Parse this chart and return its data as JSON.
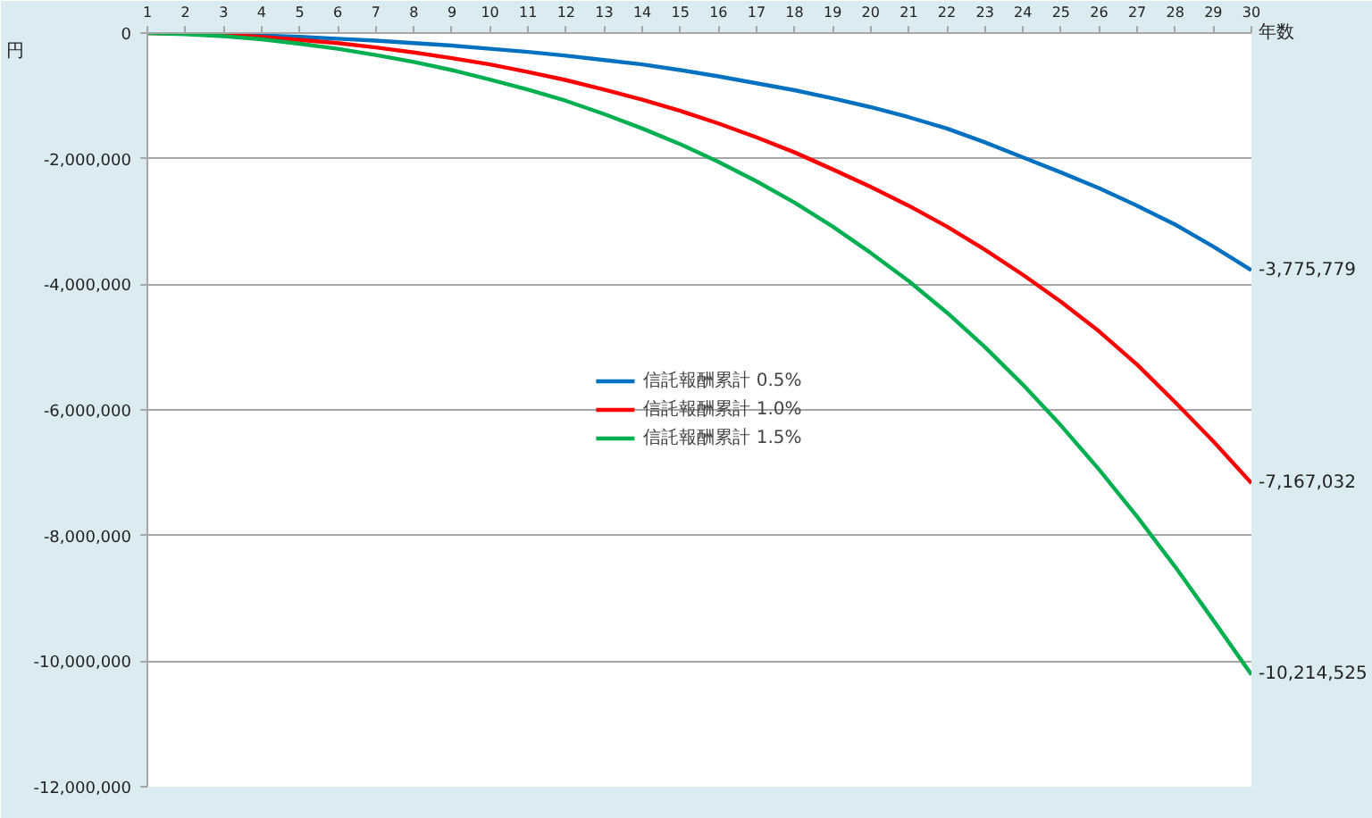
{
  "chart_data": {
    "type": "line",
    "xlabel": "年数",
    "ylabel": "円",
    "x": [
      1,
      2,
      3,
      4,
      5,
      6,
      7,
      8,
      9,
      10,
      11,
      12,
      13,
      14,
      15,
      16,
      17,
      18,
      19,
      20,
      21,
      22,
      23,
      24,
      25,
      26,
      27,
      28,
      29,
      30
    ],
    "series": [
      {
        "name": "信託報酬累計 0.5%",
        "color": "#0070c0",
        "values": [
          null,
          null,
          -20000,
          -40000,
          -60000,
          -90000,
          -120000,
          -160000,
          -200000,
          -250000,
          -300000,
          -360000,
          -430000,
          -500000,
          -590000,
          -690000,
          -800000,
          -910000,
          -1040000,
          -1180000,
          -1340000,
          -1520000,
          -1740000,
          -1980000,
          -2220000,
          -2470000,
          -2750000,
          -3050000,
          -3400000,
          -3775779
        ],
        "value_labels": [
          null,
          null,
          null,
          null,
          null,
          null,
          null,
          null,
          null,
          null,
          null,
          null,
          null,
          null,
          null,
          null,
          null,
          null,
          null,
          null,
          null,
          null,
          null,
          null,
          null,
          null,
          null,
          null,
          null,
          "-3,775,779"
        ]
      },
      {
        "name": "信託報酬累計 1.0%",
        "color": "#ff0000",
        "values": [
          0,
          -10000,
          -30000,
          -60000,
          -110000,
          -160000,
          -230000,
          -310000,
          -400000,
          -500000,
          -620000,
          -750000,
          -900000,
          -1060000,
          -1240000,
          -1440000,
          -1660000,
          -1900000,
          -2170000,
          -2450000,
          -2750000,
          -3080000,
          -3450000,
          -3850000,
          -4280000,
          -4750000,
          -5280000,
          -5880000,
          -6500000,
          -7167032
        ],
        "value_labels": [
          null,
          null,
          null,
          null,
          null,
          null,
          null,
          null,
          null,
          null,
          null,
          null,
          null,
          null,
          null,
          null,
          null,
          null,
          null,
          null,
          null,
          null,
          null,
          null,
          null,
          null,
          null,
          null,
          null,
          "-7,167,032"
        ]
      },
      {
        "name": "信託報酬累計 1.5%",
        "color": "#00b050",
        "values": [
          0,
          -20000,
          -50000,
          -100000,
          -170000,
          -250000,
          -350000,
          -460000,
          -590000,
          -740000,
          -900000,
          -1080000,
          -1290000,
          -1520000,
          -1770000,
          -2050000,
          -2360000,
          -2700000,
          -3080000,
          -3500000,
          -3950000,
          -4450000,
          -5000000,
          -5600000,
          -6250000,
          -6950000,
          -7700000,
          -8500000,
          -9350000,
          -10214525
        ],
        "value_labels": [
          null,
          null,
          null,
          null,
          null,
          null,
          null,
          null,
          null,
          null,
          null,
          null,
          null,
          null,
          null,
          null,
          null,
          null,
          null,
          null,
          null,
          null,
          null,
          null,
          null,
          null,
          null,
          null,
          null,
          "-10,214,525"
        ]
      }
    ],
    "xlim": [
      1,
      30
    ],
    "xticks": [
      1,
      2,
      3,
      4,
      5,
      6,
      7,
      8,
      9,
      10,
      11,
      12,
      13,
      14,
      15,
      16,
      17,
      18,
      19,
      20,
      21,
      22,
      23,
      24,
      25,
      26,
      27,
      28,
      29,
      30
    ],
    "ylim": [
      -12000000,
      0
    ],
    "yticks": [
      0,
      {
        "value": -2000000,
        "label": "-2,000,000"
      },
      {
        "value": -4000000,
        "label": "-4,000,000"
      },
      {
        "value": -6000000,
        "label": "-6,000,000"
      },
      {
        "value": -8000000,
        "label": "-8,000,000"
      },
      {
        "value": -10000000,
        "label": "-10,000,000"
      },
      {
        "value": -12000000,
        "label": "-12,000,000"
      }
    ],
    "grid": "y",
    "legend": "center",
    "marker": "none",
    "line_style": "solid"
  }
}
